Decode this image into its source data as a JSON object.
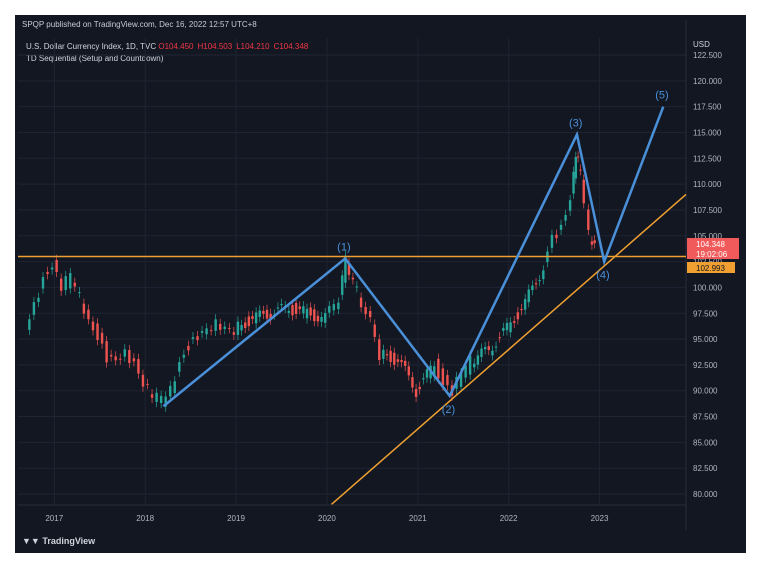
{
  "header": {
    "published": "SPQP published on TradingView.com, Dec 16, 2022 12:57 UTC+8",
    "symbol": "U.S. Dollar Currency Index, 1D, TVC",
    "open": "O104.450",
    "high": "H104.503",
    "low": "L104.210",
    "close": "C104.348",
    "indicator": "TD Sequential (Setup and Countdown)"
  },
  "footer": {
    "logo": "TradingView"
  },
  "colors": {
    "wave": "#4a90d9",
    "trend": "#f0a030",
    "up": "#26a69a",
    "down": "#ef5350",
    "bg": "#131722"
  },
  "chart_data": {
    "type": "line",
    "currency": "USD",
    "yticks": [
      "80.000",
      "82.500",
      "85.000",
      "87.500",
      "90.000",
      "92.500",
      "95.000",
      "97.500",
      "100.000",
      "102.500",
      "105.000",
      "107.500",
      "110.000",
      "112.500",
      "115.000",
      "117.500",
      "120.000",
      "122.500"
    ],
    "ylim": [
      79,
      124
    ],
    "xticks": [
      "2017",
      "2018",
      "2019",
      "2020",
      "2021",
      "2022",
      "2023"
    ],
    "xlim": [
      2016.6,
      2023.95
    ],
    "price": [
      [
        2016.7,
        95.5
      ],
      [
        2016.8,
        98
      ],
      [
        2016.9,
        101
      ],
      [
        2017.0,
        102.5
      ],
      [
        2017.1,
        100
      ],
      [
        2017.2,
        101
      ],
      [
        2017.3,
        99
      ],
      [
        2017.4,
        97
      ],
      [
        2017.5,
        95.5
      ],
      [
        2017.6,
        93
      ],
      [
        2017.7,
        92.5
      ],
      [
        2017.8,
        93.5
      ],
      [
        2017.9,
        93
      ],
      [
        2018.0,
        91
      ],
      [
        2018.1,
        89.5
      ],
      [
        2018.2,
        89
      ],
      [
        2018.3,
        90
      ],
      [
        2018.4,
        93
      ],
      [
        2018.5,
        94.5
      ],
      [
        2018.6,
        95
      ],
      [
        2018.7,
        95.5
      ],
      [
        2018.8,
        96.5
      ],
      [
        2018.9,
        96.5
      ],
      [
        2019.0,
        96
      ],
      [
        2019.2,
        97
      ],
      [
        2019.4,
        97.5
      ],
      [
        2019.6,
        98
      ],
      [
        2019.8,
        97.5
      ],
      [
        2020.0,
        97
      ],
      [
        2020.15,
        99
      ],
      [
        2020.22,
        102.5
      ],
      [
        2020.35,
        99.5
      ],
      [
        2020.5,
        97
      ],
      [
        2020.6,
        93.5
      ],
      [
        2020.8,
        93
      ],
      [
        2021.0,
        90
      ],
      [
        2021.2,
        92.5
      ],
      [
        2021.3,
        91
      ],
      [
        2021.4,
        90
      ],
      [
        2021.5,
        91.5
      ],
      [
        2021.6,
        92.8
      ],
      [
        2021.8,
        94
      ],
      [
        2022.0,
        96
      ],
      [
        2022.2,
        98.5
      ],
      [
        2022.4,
        102
      ],
      [
        2022.5,
        104.5
      ],
      [
        2022.6,
        106
      ],
      [
        2022.7,
        109
      ],
      [
        2022.75,
        113
      ],
      [
        2022.8,
        111
      ],
      [
        2022.9,
        105
      ],
      [
        2022.96,
        104.3
      ]
    ],
    "waves": [
      {
        "label": "",
        "x": 2018.2,
        "y": 88.5
      },
      {
        "label": "(1)",
        "x": 2020.2,
        "y": 102.8
      },
      {
        "label": "(2)",
        "x": 2021.35,
        "y": 89.5
      },
      {
        "label": "(3)",
        "x": 2022.75,
        "y": 114.8
      },
      {
        "label": "(4)",
        "x": 2023.05,
        "y": 102.5
      },
      {
        "label": "(5)",
        "x": 2023.7,
        "y": 117.5
      }
    ],
    "horizontal_line": 102.993,
    "trendline": [
      [
        2020.05,
        79
      ],
      [
        2023.95,
        109
      ]
    ],
    "last_price": "104.348",
    "countdown": "19:02:06",
    "line_price": "102.993"
  }
}
